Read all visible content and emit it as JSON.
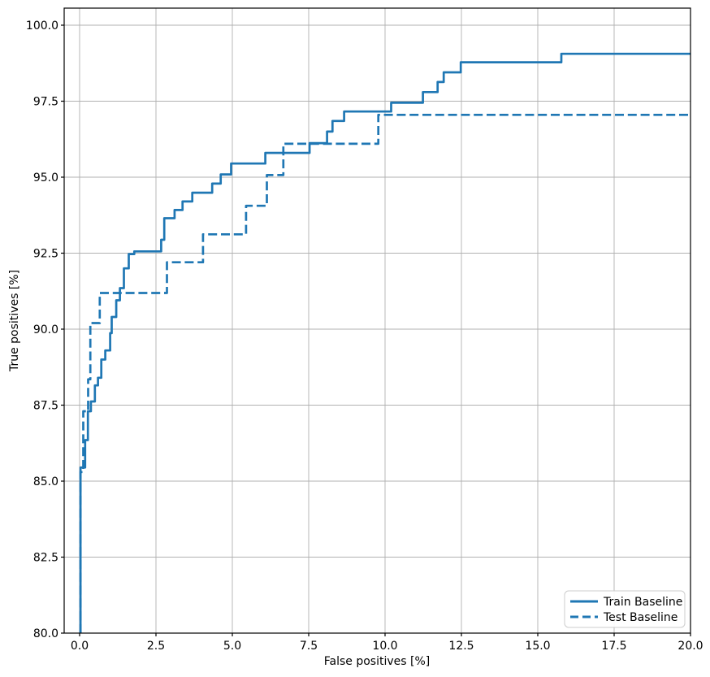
{
  "figure": {
    "background": "#ffffff"
  },
  "chart_data": {
    "type": "line",
    "subtype": "roc-step-curves",
    "title": "",
    "xlabel": "False positives [%]",
    "ylabel": "True positives [%]",
    "xlim": [
      -0.5,
      20.0
    ],
    "ylim": [
      80.0,
      100.55
    ],
    "xticks": [
      "0.0",
      "2.5",
      "5.0",
      "7.5",
      "10.0",
      "12.5",
      "15.0",
      "17.5",
      "20.0"
    ],
    "yticks": [
      "80.0",
      "82.5",
      "85.0",
      "87.5",
      "90.0",
      "92.5",
      "95.0",
      "97.5",
      "100.0"
    ],
    "grid": true,
    "grid_color": "#b0b0b0",
    "spine_color": "#000000",
    "line_color": "#1f77b4",
    "legend_position": "lower right",
    "legend_border_color": "#cccccc",
    "legend_background": "#ffffff",
    "series": [
      {
        "name": "Train Baseline",
        "style": "solid",
        "color": "#1f77b4",
        "points": [
          [
            0.03,
            80.0
          ],
          [
            0.03,
            85.45
          ],
          [
            0.18,
            85.45
          ],
          [
            0.18,
            86.35
          ],
          [
            0.27,
            86.35
          ],
          [
            0.27,
            87.3
          ],
          [
            0.37,
            87.3
          ],
          [
            0.37,
            87.62
          ],
          [
            0.5,
            87.62
          ],
          [
            0.5,
            88.15
          ],
          [
            0.6,
            88.15
          ],
          [
            0.6,
            88.4
          ],
          [
            0.71,
            88.4
          ],
          [
            0.71,
            89.0
          ],
          [
            0.84,
            89.0
          ],
          [
            0.84,
            89.3
          ],
          [
            1.0,
            89.3
          ],
          [
            1.0,
            89.87
          ],
          [
            1.05,
            89.87
          ],
          [
            1.05,
            90.4
          ],
          [
            1.2,
            90.4
          ],
          [
            1.2,
            90.95
          ],
          [
            1.32,
            90.95
          ],
          [
            1.32,
            91.35
          ],
          [
            1.45,
            91.35
          ],
          [
            1.45,
            92.0
          ],
          [
            1.61,
            92.0
          ],
          [
            1.61,
            92.47
          ],
          [
            1.79,
            92.47
          ],
          [
            1.79,
            92.56
          ],
          [
            2.67,
            92.56
          ],
          [
            2.67,
            92.94
          ],
          [
            2.77,
            92.94
          ],
          [
            2.77,
            93.65
          ],
          [
            3.11,
            93.65
          ],
          [
            3.11,
            93.92
          ],
          [
            3.37,
            93.92
          ],
          [
            3.37,
            94.2
          ],
          [
            3.69,
            94.2
          ],
          [
            3.69,
            94.49
          ],
          [
            4.34,
            94.49
          ],
          [
            4.34,
            94.79
          ],
          [
            4.62,
            94.79
          ],
          [
            4.62,
            95.09
          ],
          [
            4.96,
            95.09
          ],
          [
            4.96,
            95.45
          ],
          [
            6.08,
            95.45
          ],
          [
            6.08,
            95.8
          ],
          [
            7.53,
            95.8
          ],
          [
            7.53,
            96.12
          ],
          [
            8.1,
            96.12
          ],
          [
            8.1,
            96.5
          ],
          [
            8.28,
            96.5
          ],
          [
            8.28,
            96.85
          ],
          [
            8.66,
            96.85
          ],
          [
            8.66,
            97.16
          ],
          [
            10.2,
            97.16
          ],
          [
            10.2,
            97.45
          ],
          [
            11.24,
            97.45
          ],
          [
            11.24,
            97.8
          ],
          [
            11.72,
            97.8
          ],
          [
            11.72,
            98.13
          ],
          [
            11.92,
            98.13
          ],
          [
            11.92,
            98.45
          ],
          [
            12.48,
            98.45
          ],
          [
            12.48,
            98.78
          ],
          [
            15.77,
            98.78
          ],
          [
            15.77,
            99.06
          ],
          [
            20.0,
            99.06
          ]
        ]
      },
      {
        "name": "Test Baseline",
        "style": "dashed",
        "color": "#1f77b4",
        "points": [
          [
            0.03,
            80.0
          ],
          [
            0.03,
            85.3
          ],
          [
            0.12,
            85.3
          ],
          [
            0.12,
            87.3
          ],
          [
            0.28,
            87.3
          ],
          [
            0.28,
            88.35
          ],
          [
            0.35,
            88.35
          ],
          [
            0.35,
            90.2
          ],
          [
            0.66,
            90.2
          ],
          [
            0.66,
            91.19
          ],
          [
            2.86,
            91.19
          ],
          [
            2.86,
            92.2
          ],
          [
            4.04,
            92.2
          ],
          [
            4.04,
            93.12
          ],
          [
            5.45,
            93.12
          ],
          [
            5.45,
            94.06
          ],
          [
            6.13,
            94.06
          ],
          [
            6.13,
            95.07
          ],
          [
            6.67,
            95.07
          ],
          [
            6.67,
            96.1
          ],
          [
            9.78,
            96.1
          ],
          [
            9.78,
            97.05
          ],
          [
            20.0,
            97.05
          ]
        ]
      }
    ]
  }
}
